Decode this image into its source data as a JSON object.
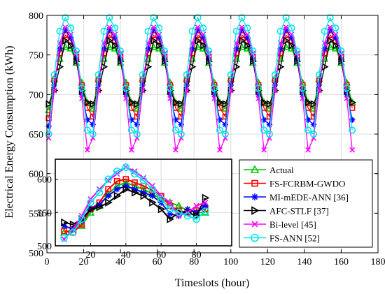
{
  "chart_data": [
    {
      "type": "line",
      "xlabel": "Timeslots (hour)",
      "ylabel": "Electrical Energy Consumption (kWh)",
      "xlim": [
        0,
        180
      ],
      "ylim": [
        500,
        800
      ],
      "xticks": [
        0,
        20,
        40,
        60,
        80,
        100,
        120,
        140,
        160,
        180
      ],
      "yticks": [
        500,
        550,
        600,
        650,
        700,
        750,
        800
      ],
      "grid": true,
      "period_hours": 24,
      "series": [
        {
          "name": "Actual",
          "color": "#00cc00",
          "marker": "triangle-up",
          "x": [
            1,
            4,
            7,
            10,
            13,
            16,
            19,
            22,
            25
          ],
          "y": [
            680,
            720,
            745,
            760,
            758,
            740,
            715,
            690,
            682
          ]
        },
        {
          "name": "FS-FCRBM-GWDO",
          "color": "#ff0000",
          "marker": "square",
          "x": [
            1,
            4,
            7,
            10,
            13,
            16,
            19,
            22,
            25
          ],
          "y": [
            670,
            718,
            752,
            775,
            768,
            748,
            712,
            683,
            672
          ]
        },
        {
          "name": "MI-mEDE-ANN [36]",
          "color": "#0000ff",
          "marker": "star",
          "x": [
            1,
            4,
            7,
            10,
            13,
            16,
            19,
            22,
            25
          ],
          "y": [
            660,
            712,
            758,
            782,
            772,
            744,
            700,
            668,
            662
          ]
        },
        {
          "name": "AFC-STLF [37]",
          "color": "#000000",
          "marker": "triangle-right",
          "x": [
            1,
            4,
            7,
            10,
            13,
            16,
            19,
            22,
            25
          ],
          "y": [
            688,
            705,
            735,
            768,
            762,
            742,
            705,
            690,
            688
          ]
        },
        {
          "name": "Bi-level [45]",
          "color": "#ff00ff",
          "marker": "x",
          "x": [
            1,
            4,
            7,
            10,
            13,
            16,
            19,
            22,
            25
          ],
          "y": [
            645,
            705,
            765,
            785,
            776,
            752,
            695,
            630,
            645
          ]
        },
        {
          "name": "FS-ANN [52]",
          "color": "#00e5ee",
          "marker": "circle",
          "x": [
            1,
            4,
            7,
            10,
            13,
            16,
            19,
            22,
            25
          ],
          "y": [
            650,
            725,
            780,
            797,
            784,
            755,
            708,
            655,
            650
          ]
        }
      ],
      "legend": "bottom-right"
    },
    {
      "type": "line",
      "title": "",
      "xlim": [
        0,
        100
      ],
      "ylim": [
        500,
        630
      ],
      "xticks": [
        20,
        40,
        60,
        80
      ],
      "yticks": [
        500,
        550,
        600
      ],
      "series": [
        {
          "name": "Actual",
          "color": "#00cc00",
          "marker": "triangle-up",
          "x": [
            5,
            10,
            15,
            20,
            25,
            30,
            35,
            40,
            45,
            50,
            55,
            60,
            65,
            70,
            75,
            80,
            85
          ],
          "y": [
            520,
            525,
            530,
            550,
            560,
            578,
            590,
            595,
            590,
            585,
            578,
            570,
            565,
            560,
            553,
            550,
            550
          ]
        },
        {
          "name": "FS-FCRBM-GWDO",
          "color": "#ff0000",
          "marker": "square",
          "x": [
            5,
            10,
            15,
            20,
            25,
            30,
            35,
            40,
            45,
            50,
            55,
            60,
            65,
            70,
            75,
            80,
            85
          ],
          "y": [
            522,
            520,
            532,
            555,
            565,
            585,
            597,
            600,
            595,
            590,
            583,
            575,
            560,
            553,
            550,
            553,
            555
          ]
        },
        {
          "name": "MI-mEDE-ANN [36]",
          "color": "#0000ff",
          "marker": "star",
          "x": [
            5,
            10,
            15,
            20,
            25,
            30,
            35,
            40,
            45,
            50,
            55,
            60,
            65,
            70,
            75,
            80,
            85
          ],
          "y": [
            530,
            525,
            538,
            555,
            562,
            575,
            585,
            590,
            585,
            580,
            575,
            565,
            548,
            545,
            555,
            550,
            560
          ]
        },
        {
          "name": "AFC-STLF [37]",
          "color": "#000000",
          "marker": "triangle-right",
          "x": [
            5,
            10,
            15,
            20,
            25,
            30,
            35,
            40,
            45,
            50,
            55,
            60,
            65,
            70,
            75,
            80,
            85
          ],
          "y": [
            535,
            532,
            540,
            555,
            558,
            565,
            575,
            585,
            580,
            575,
            565,
            555,
            540,
            550,
            550,
            545,
            572
          ]
        },
        {
          "name": "Bi-level [45]",
          "color": "#ff00ff",
          "marker": "x",
          "x": [
            5,
            10,
            15,
            20,
            25,
            30,
            35,
            40,
            45,
            50,
            55,
            60,
            65,
            70,
            75,
            80,
            85
          ],
          "y": [
            510,
            525,
            545,
            570,
            585,
            598,
            608,
            618,
            612,
            602,
            590,
            575,
            565,
            545,
            550,
            560,
            565
          ]
        },
        {
          "name": "FS-ANN [52]",
          "color": "#00e5ee",
          "marker": "circle",
          "x": [
            5,
            10,
            15,
            20,
            25,
            30,
            35,
            40,
            45,
            50,
            55,
            60,
            65,
            70,
            75,
            80,
            85
          ],
          "y": [
            512,
            520,
            540,
            565,
            580,
            600,
            612,
            618,
            608,
            598,
            585,
            570,
            555,
            550,
            545,
            540,
            552
          ]
        }
      ]
    }
  ]
}
